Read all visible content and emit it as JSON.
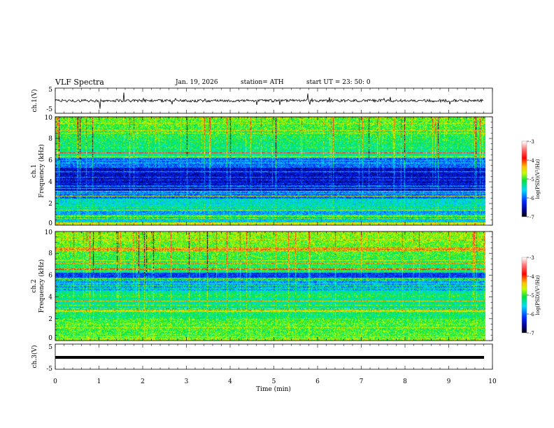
{
  "header": {
    "title": "VLF Spectra",
    "date": "Jan. 19, 2026",
    "station": "station= ATH",
    "start": "start  UT  =    23: 50: 0"
  },
  "chart_data": [
    {
      "type": "line",
      "name": "ch1-waveform",
      "ylabel": "ch.1(V)",
      "ylim": [
        -5,
        5
      ],
      "yticks": [
        "5",
        "-5"
      ],
      "xlim": [
        0,
        10
      ]
    },
    {
      "type": "heatmap",
      "name": "ch1-spectrogram",
      "ylabel": "ch.1\nFrequency (kHz)",
      "ylabel_line1": "ch.1",
      "ylabel_line2": "Frequency (kHz)",
      "ylim": [
        0,
        10
      ],
      "yticks": [
        "0",
        "2",
        "4",
        "6",
        "8",
        "10"
      ],
      "xlim": [
        0,
        10
      ],
      "colorbar": {
        "label": "log(PSD)(V²/Hz)",
        "range": [
          -7,
          -3
        ],
        "ticks": [
          "-3",
          "-4",
          "-5",
          "-6",
          "-7"
        ]
      }
    },
    {
      "type": "heatmap",
      "name": "ch2-spectrogram",
      "ylabel_line1": "ch.2",
      "ylabel_line2": "Frequency (kHz)",
      "ylim": [
        0,
        10
      ],
      "yticks": [
        "0",
        "2",
        "4",
        "6",
        "8",
        "10"
      ],
      "xlim": [
        0,
        10
      ],
      "colorbar": {
        "label": "log(PSD)(V²/Hz)",
        "range": [
          -7,
          -3
        ],
        "ticks": [
          "-3",
          "-4",
          "-5",
          "-6",
          "-7"
        ]
      }
    },
    {
      "type": "line",
      "name": "ch3-waveform",
      "ylabel": "ch.3(V)",
      "ylim": [
        -5,
        5
      ],
      "yticks": [
        "5",
        "-5"
      ],
      "xlim": [
        0,
        10
      ]
    }
  ],
  "xaxis": {
    "label": "Time (min)",
    "ticks": [
      "0",
      "1",
      "2",
      "3",
      "4",
      "5",
      "6",
      "7",
      "8",
      "9",
      "10"
    ]
  }
}
